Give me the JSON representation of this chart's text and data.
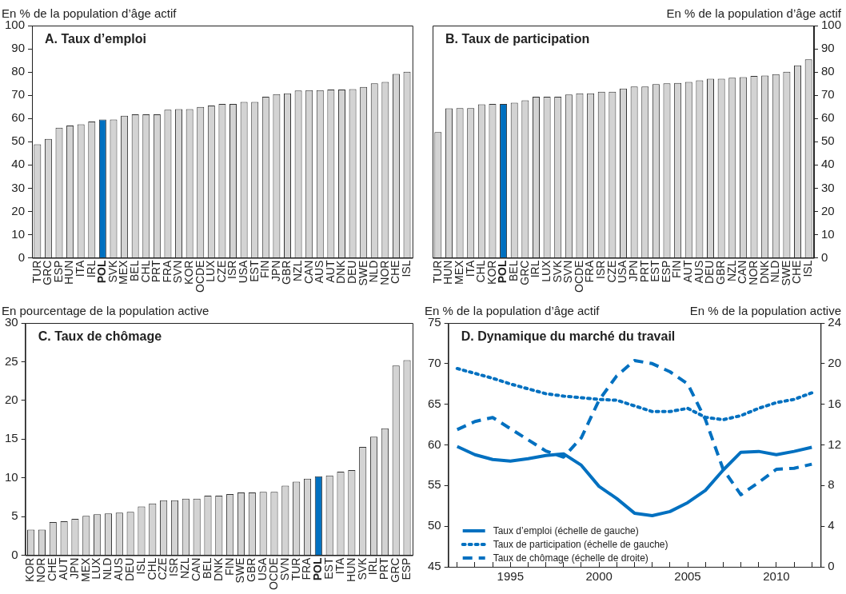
{
  "chart_data": [
    {
      "type": "bar",
      "title": "A. Taux d’emploi",
      "ylabel": "En % de la population d’âge actif",
      "categories": [
        "TUR",
        "GRC",
        "ESP",
        "HUN",
        "ITA",
        "IRL",
        "POL",
        "SVK",
        "MEX",
        "BEL",
        "CHL",
        "PRT",
        "FRA",
        "SVN",
        "KOR",
        "OCDE",
        "LUX",
        "CZE",
        "ISR",
        "USA",
        "EST",
        "FIN",
        "JPN",
        "GBR",
        "NZL",
        "CAN",
        "AUS",
        "AUT",
        "DNK",
        "DEU",
        "SWE",
        "NLD",
        "NOR",
        "CHE",
        "ISL"
      ],
      "series": [
        {
          "values": [
            48.9,
            51.2,
            56.0,
            57.0,
            57.5,
            58.7,
            59.6,
            59.6,
            61.2,
            61.8,
            61.8,
            61.8,
            63.8,
            64.0,
            64.0,
            65.0,
            65.6,
            66.3,
            66.3,
            67.1,
            67.1,
            69.4,
            70.5,
            70.8,
            72.0,
            72.2,
            72.2,
            72.5,
            72.5,
            72.6,
            73.6,
            75.1,
            75.7,
            79.2,
            80.1
          ],
          "colors": [
            "#d3d3d3",
            "#d3d3d3",
            "#d3d3d3",
            "#d3d3d3",
            "#d3d3d3",
            "#d3d3d3",
            "#0070c0",
            "#d3d3d3",
            "#d3d3d3",
            "#d3d3d3",
            "#d3d3d3",
            "#d3d3d3",
            "#d3d3d3",
            "#d3d3d3",
            "#d3d3d3",
            "#d3d3d3",
            "#d3d3d3",
            "#d3d3d3",
            "#d3d3d3",
            "#d3d3d3",
            "#d3d3d3",
            "#d3d3d3",
            "#d3d3d3",
            "#d3d3d3",
            "#d3d3d3",
            "#d3d3d3",
            "#d3d3d3",
            "#d3d3d3",
            "#d3d3d3",
            "#d3d3d3",
            "#d3d3d3",
            "#d3d3d3",
            "#d3d3d3",
            "#d3d3d3",
            "#d3d3d3"
          ]
        }
      ],
      "ylim": [
        0,
        100
      ],
      "yticks": [
        0,
        10,
        20,
        30,
        40,
        50,
        60,
        70,
        80,
        90,
        100
      ],
      "grid": false,
      "legend": false
    },
    {
      "type": "bar",
      "title": "B. Taux de participation",
      "y2label": "En % de la population d’âge actif",
      "categories": [
        "TUR",
        "HUN",
        "MEX",
        "ITA",
        "CHL",
        "KOR",
        "POL",
        "BEL",
        "GRC",
        "IRL",
        "LUX",
        "SVK",
        "SVN",
        "OCDE",
        "FRA",
        "ISR",
        "CZE",
        "USA",
        "JPN",
        "PRT",
        "EST",
        "ESP",
        "FIN",
        "AUT",
        "AUS",
        "DEU",
        "GBR",
        "NZL",
        "CAN",
        "NOR",
        "DNK",
        "NLD",
        "SWE",
        "CHE",
        "ISL"
      ],
      "series": [
        {
          "axis": "y2",
          "values": [
            54.1,
            64.4,
            64.5,
            64.5,
            66.1,
            66.3,
            66.3,
            66.8,
            67.8,
            69.4,
            69.4,
            69.4,
            70.3,
            70.8,
            70.8,
            71.5,
            71.5,
            72.9,
            73.8,
            73.8,
            74.8,
            75.1,
            75.3,
            75.7,
            76.4,
            77.1,
            77.1,
            77.5,
            77.8,
            78.3,
            78.5,
            79.1,
            80.1,
            82.9,
            85.5
          ],
          "colors": [
            "#d3d3d3",
            "#d3d3d3",
            "#d3d3d3",
            "#d3d3d3",
            "#d3d3d3",
            "#d3d3d3",
            "#0070c0",
            "#d3d3d3",
            "#d3d3d3",
            "#d3d3d3",
            "#d3d3d3",
            "#d3d3d3",
            "#d3d3d3",
            "#d3d3d3",
            "#d3d3d3",
            "#d3d3d3",
            "#d3d3d3",
            "#d3d3d3",
            "#d3d3d3",
            "#d3d3d3",
            "#d3d3d3",
            "#d3d3d3",
            "#d3d3d3",
            "#d3d3d3",
            "#d3d3d3",
            "#d3d3d3",
            "#d3d3d3",
            "#d3d3d3",
            "#d3d3d3",
            "#d3d3d3",
            "#d3d3d3",
            "#d3d3d3",
            "#d3d3d3",
            "#d3d3d3",
            "#d3d3d3"
          ]
        }
      ],
      "y2lim": [
        0,
        100
      ],
      "y2ticks": [
        0,
        10,
        20,
        30,
        40,
        50,
        60,
        70,
        80,
        90,
        100
      ],
      "grid": false,
      "legend": false
    },
    {
      "type": "bar",
      "title": "C. Taux de chômage",
      "ylabel": "En pourcentage de la population active",
      "categories": [
        "KOR",
        "NOR",
        "CHE",
        "AUT",
        "JPN",
        "MEX",
        "LUX",
        "NLD",
        "AUS",
        "DEU",
        "ISL",
        "CHL",
        "CZE",
        "ISR",
        "NZL",
        "CAN",
        "BEL",
        "DNK",
        "FIN",
        "SWE",
        "GBR",
        "USA",
        "OCDE",
        "SVN",
        "TUR",
        "FRA",
        "POL",
        "EST",
        "ITA",
        "HUN",
        "SVK",
        "IRL",
        "PRT",
        "GRC",
        "ESP"
      ],
      "series": [
        {
          "values": [
            3.3,
            3.3,
            4.3,
            4.4,
            4.7,
            5.1,
            5.3,
            5.4,
            5.5,
            5.6,
            6.3,
            6.7,
            7.1,
            7.1,
            7.3,
            7.3,
            7.7,
            7.7,
            7.9,
            8.1,
            8.1,
            8.2,
            8.2,
            9.0,
            9.5,
            9.9,
            10.2,
            10.3,
            10.8,
            11.0,
            14.0,
            15.3,
            16.4,
            24.5,
            25.2
          ],
          "colors": [
            "#d3d3d3",
            "#d3d3d3",
            "#d3d3d3",
            "#d3d3d3",
            "#d3d3d3",
            "#d3d3d3",
            "#d3d3d3",
            "#d3d3d3",
            "#d3d3d3",
            "#d3d3d3",
            "#d3d3d3",
            "#d3d3d3",
            "#d3d3d3",
            "#d3d3d3",
            "#d3d3d3",
            "#d3d3d3",
            "#d3d3d3",
            "#d3d3d3",
            "#d3d3d3",
            "#d3d3d3",
            "#d3d3d3",
            "#d3d3d3",
            "#d3d3d3",
            "#d3d3d3",
            "#d3d3d3",
            "#d3d3d3",
            "#0070c0",
            "#d3d3d3",
            "#d3d3d3",
            "#d3d3d3",
            "#d3d3d3",
            "#d3d3d3",
            "#d3d3d3",
            "#d3d3d3",
            "#d3d3d3"
          ]
        }
      ],
      "ylim": [
        0,
        30
      ],
      "yticks": [
        0,
        5,
        10,
        15,
        20,
        25,
        30
      ],
      "grid": false,
      "legend": false
    },
    {
      "type": "line",
      "title": "D. Dynamique du marché du travail",
      "ylabel": "En % de la population d’âge actif",
      "y2label": "En % de la population active",
      "x": [
        1992,
        1993,
        1994,
        1995,
        1996,
        1997,
        1998,
        1999,
        2000,
        2001,
        2002,
        2003,
        2004,
        2005,
        2006,
        2007,
        2008,
        2009,
        2010,
        2011,
        2012
      ],
      "series": [
        {
          "name": "Taux d’emploi (échelle de gauche)",
          "color": "#0070c0",
          "line_style": "solid",
          "values": [
            59.8,
            58.8,
            58.2,
            58.0,
            58.3,
            58.7,
            58.9,
            57.5,
            54.9,
            53.4,
            51.6,
            51.3,
            51.8,
            52.9,
            54.4,
            56.9,
            59.1,
            59.2,
            58.8,
            59.2,
            59.7
          ]
        },
        {
          "name": "Taux de participation (échelle de gauche)",
          "color": "#0070c0",
          "line_style": "dotted",
          "values": [
            69.4,
            68.8,
            68.2,
            67.5,
            66.9,
            66.3,
            66.0,
            65.8,
            65.6,
            65.5,
            64.8,
            64.1,
            64.1,
            64.5,
            63.4,
            63.1,
            63.6,
            64.5,
            65.2,
            65.6,
            66.4
          ]
        },
        {
          "name": "Taux de chômage (échelle de droite)",
          "color": "#0070c0",
          "line_style": "dashed",
          "axis": "y2",
          "values": [
            13.5,
            14.3,
            14.7,
            13.6,
            12.5,
            11.4,
            10.8,
            12.7,
            16.4,
            18.8,
            20.3,
            20.0,
            19.2,
            18.0,
            14.5,
            9.6,
            7.1,
            8.3,
            9.6,
            9.7,
            10.1
          ]
        }
      ],
      "xlim": [
        1991.5,
        2012.5
      ],
      "xticks": [
        {
          "value": 1992,
          "label": null
        },
        {
          "value": 1993,
          "label": null
        },
        {
          "value": 1994,
          "label": null
        },
        1995,
        {
          "value": 1996,
          "label": null
        },
        {
          "value": 1997,
          "label": null
        },
        {
          "value": 1998,
          "label": null
        },
        {
          "value": 1999,
          "label": null
        },
        2000,
        {
          "value": 2001,
          "label": null
        },
        {
          "value": 2002,
          "label": null
        },
        {
          "value": 2003,
          "label": null
        },
        {
          "value": 2004,
          "label": null
        },
        2005,
        {
          "value": 2006,
          "label": null
        },
        {
          "value": 2007,
          "label": null
        },
        {
          "value": 2008,
          "label": null
        },
        {
          "value": 2009,
          "label": null
        },
        2010,
        {
          "value": 2011,
          "label": null
        },
        {
          "value": 2012,
          "label": null
        }
      ],
      "ylim": [
        45,
        75
      ],
      "yticks": [
        45,
        50,
        55,
        60,
        65,
        70,
        75
      ],
      "y2lim": [
        0,
        24
      ],
      "y2ticks": [
        0,
        4,
        8,
        12,
        16,
        20,
        24
      ],
      "grid": false,
      "legend": "bottom left",
      "marker": "none"
    }
  ]
}
